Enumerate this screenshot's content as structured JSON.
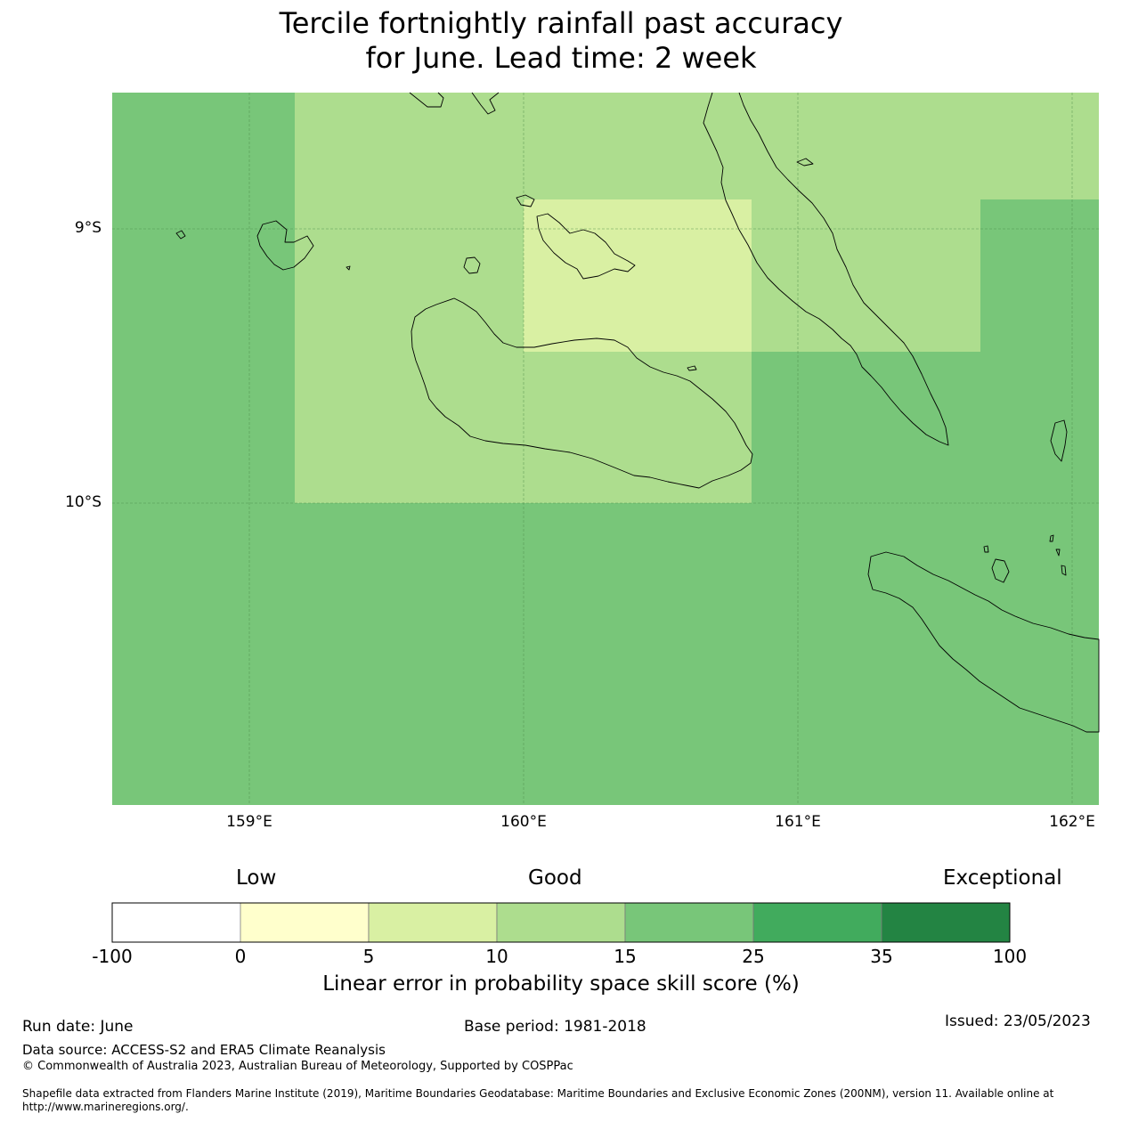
{
  "title": {
    "line1": "Tercile fortnightly rainfall past accuracy",
    "line2": "for June. Lead time: 2 week"
  },
  "map": {
    "lat_labels": [
      "9°S",
      "10°S"
    ],
    "lon_labels": [
      "159°E",
      "160°E",
      "161°E",
      "162°E"
    ],
    "lon_range": [
      158.5,
      162.1
    ],
    "lat_range": [
      -11.1,
      -8.5
    ],
    "skill_cells": [
      {
        "lon": [
          158.5,
          159.17
        ],
        "lat": [
          -8.5,
          -10.0
        ],
        "class": "15-25"
      },
      {
        "lon": [
          159.17,
          160.0
        ],
        "lat": [
          -8.5,
          -10.0
        ],
        "class": "10-15"
      },
      {
        "lon": [
          160.0,
          160.83
        ],
        "lat": [
          -8.5,
          -8.89
        ],
        "class": "10-15"
      },
      {
        "lon": [
          160.0,
          160.83
        ],
        "lat": [
          -8.89,
          -9.44
        ],
        "class": "5-10"
      },
      {
        "lon": [
          160.0,
          160.83
        ],
        "lat": [
          -9.44,
          -10.0
        ],
        "class": "10-15"
      },
      {
        "lon": [
          160.83,
          161.67
        ],
        "lat": [
          -8.5,
          -9.44
        ],
        "class": "10-15"
      },
      {
        "lon": [
          161.67,
          162.1
        ],
        "lat": [
          -8.5,
          -8.89
        ],
        "class": "10-15"
      },
      {
        "lon": [
          158.5,
          162.1
        ],
        "lat": [
          -10.0,
          -11.1
        ],
        "class": "15-25"
      }
    ]
  },
  "colorbar": {
    "categories": [
      "Low",
      "Good",
      "Exceptional"
    ],
    "ticks": [
      "-100",
      "0",
      "5",
      "10",
      "15",
      "25",
      "35",
      "100"
    ],
    "colors": [
      "#ffffff",
      "#ffffcc",
      "#d9f0a3",
      "#addd8e",
      "#78c679",
      "#41ab5d",
      "#238443"
    ],
    "label": "Linear error in probability space skill score (%)"
  },
  "footer": {
    "run_date": "Run date: June",
    "base_period": "Base period: 1981-2018",
    "issued": "Issued: 23/05/2023",
    "data_source": "Data source: ACCESS-S2 and ERA5 Climate Reanalysis",
    "copyright": "© Commonwealth of Australia 2023, Australian Bureau of Meteorology, Supported by COSPPac",
    "shapefile": "Shapefile data extracted from Flanders Marine Institute (2019), Maritime Boundaries Geodatabase: Maritime Boundaries and Exclusive Economic Zones (200NM), version 11. Available online at http://www.marineregions.org/."
  }
}
